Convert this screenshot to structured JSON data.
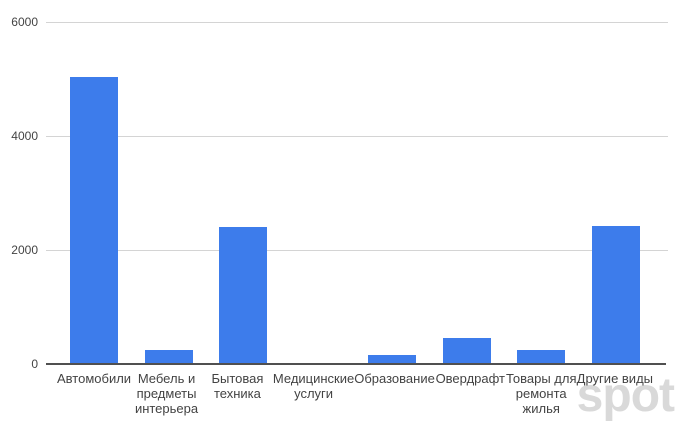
{
  "watermark": {
    "text": "spot",
    "color": "#d9d9d9"
  },
  "colors": {
    "bar": "#3d7ceb",
    "gridline": "#d4d4d4",
    "axis_line": "#505050",
    "tick_label": "#444444",
    "category_label": "#434343",
    "background": "#ffffff"
  },
  "chart_data": {
    "type": "bar",
    "categories": [
      "Автомобили",
      "Мебель и\nпредметы\nинтерьера",
      "Бытовая\nтехника",
      "Медицинские\nуслуги",
      "Образование",
      "Овердрафт",
      "Товары для\nремонта\nжилья",
      "Другие виды"
    ],
    "values": [
      5040,
      250,
      2400,
      25,
      150,
      450,
      250,
      2430
    ],
    "y_ticks": [
      0,
      2000,
      4000,
      6000
    ],
    "ylim": [
      0,
      6000
    ],
    "grid": true,
    "legend": "none",
    "xlabel": "",
    "ylabel": ""
  }
}
